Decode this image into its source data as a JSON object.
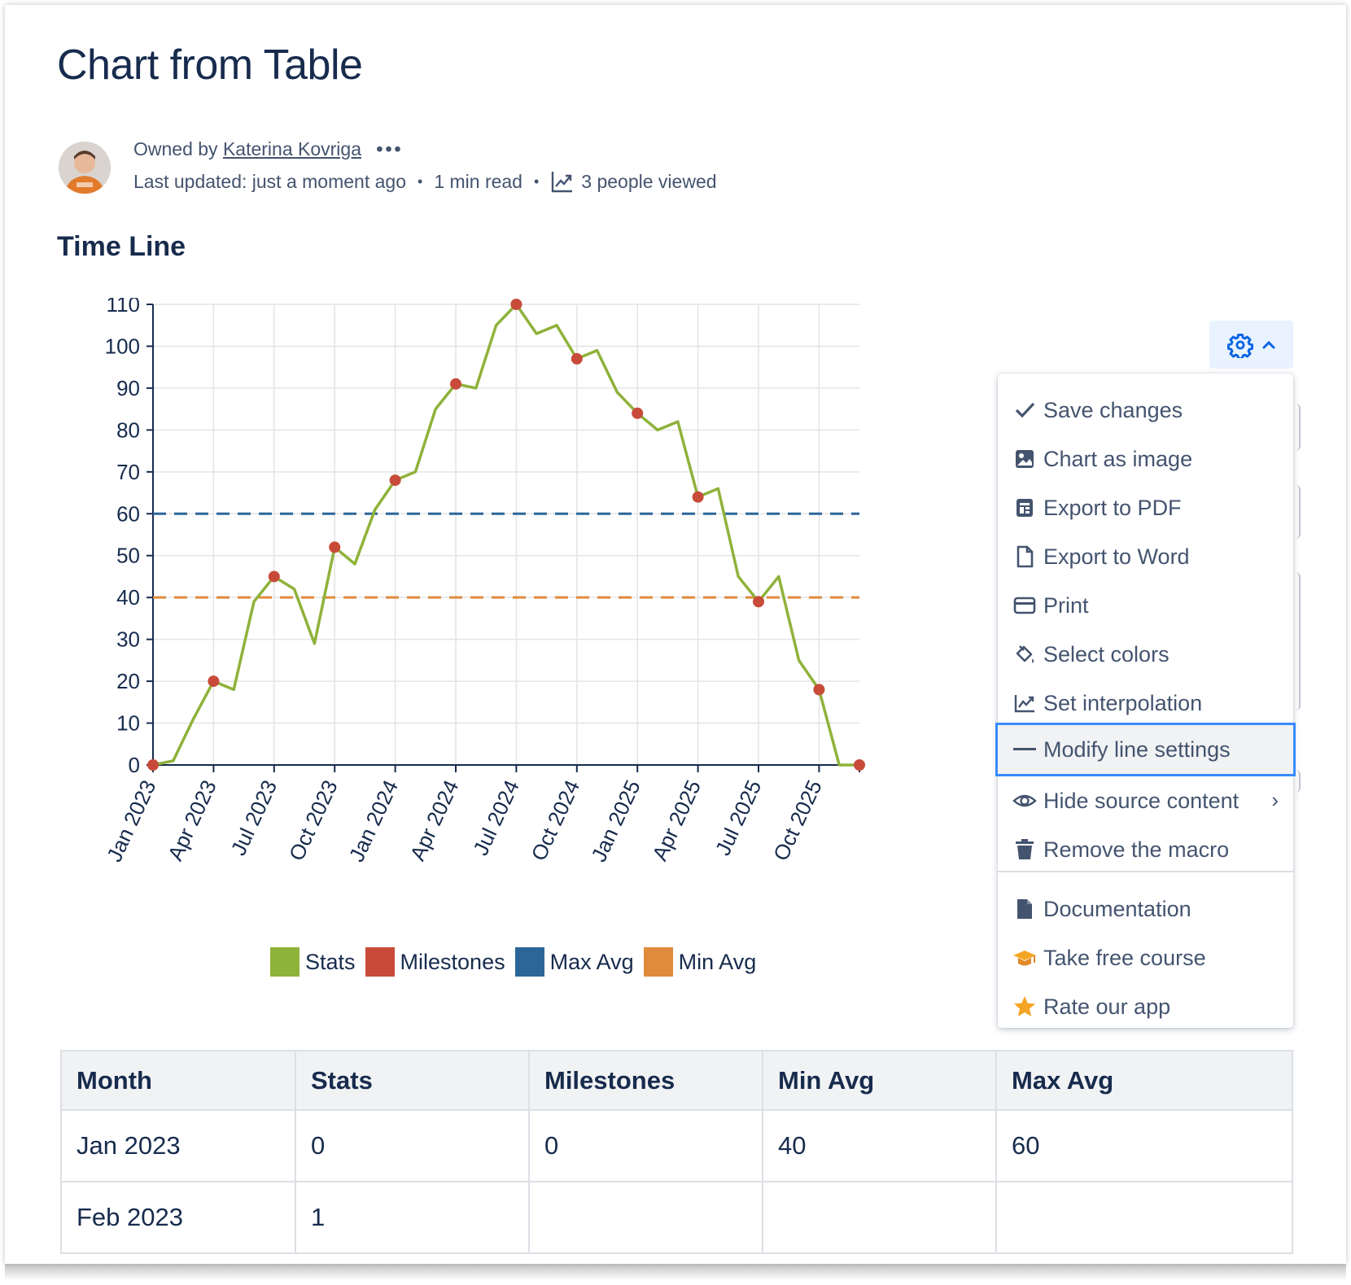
{
  "page": {
    "title": "Chart from Table",
    "byline": {
      "owned_by_prefix": "Owned by",
      "owner_name": "Katerina Kovriga",
      "more": "•••",
      "last_updated": "Last updated: just a moment ago",
      "read_time": "1 min read",
      "viewers": "3 people viewed"
    },
    "section_title": "Time Line"
  },
  "chart_data": {
    "type": "line",
    "x_ticks": [
      "Jan 2023",
      "Apr 2023",
      "Jul 2023",
      "Oct 2023",
      "Jan 2024",
      "Apr 2024",
      "Jul 2024",
      "Oct 2024",
      "Jan 2025",
      "Apr 2025",
      "Jul 2025",
      "Oct 2025"
    ],
    "y_ticks": [
      0,
      10,
      20,
      30,
      40,
      50,
      60,
      70,
      80,
      90,
      100,
      110
    ],
    "ylim": [
      0,
      110
    ],
    "xlim": [
      "Jan 2023",
      "Dec 2025"
    ],
    "grid": true,
    "series": [
      {
        "name": "Stats",
        "color": "#8fb23a",
        "x": [
          "Jan 2023",
          "Feb 2023",
          "Mar 2023",
          "Apr 2023",
          "May 2023",
          "Jun 2023",
          "Jul 2023",
          "Aug 2023",
          "Sep 2023",
          "Oct 2023",
          "Nov 2023",
          "Dec 2023",
          "Jan 2024",
          "Feb 2024",
          "Mar 2024",
          "Apr 2024",
          "May 2024",
          "Jun 2024",
          "Jul 2024",
          "Aug 2024",
          "Sep 2024",
          "Oct 2024",
          "Nov 2024",
          "Dec 2024",
          "Jan 2025",
          "Feb 2025",
          "Mar 2025",
          "Apr 2025",
          "May 2025",
          "Jun 2025",
          "Jul 2025",
          "Aug 2025",
          "Sep 2025",
          "Oct 2025",
          "Nov 2025",
          "Dec 2025"
        ],
        "values": [
          0,
          1,
          11,
          20,
          18,
          39,
          45,
          42,
          29,
          52,
          48,
          61,
          68,
          70,
          85,
          91,
          90,
          105,
          110,
          103,
          105,
          97,
          99,
          89,
          84,
          80,
          82,
          64,
          66,
          45,
          39,
          45,
          25,
          18,
          0,
          0
        ]
      },
      {
        "name": "Milestones",
        "color": "#c84b3a",
        "x": [
          "Jan 2023",
          "Apr 2023",
          "Jul 2023",
          "Oct 2023",
          "Jan 2024",
          "Apr 2024",
          "Jul 2024",
          "Oct 2024",
          "Jan 2025",
          "Apr 2025",
          "Jul 2025",
          "Oct 2025",
          "Dec 2025"
        ],
        "values": [
          0,
          20,
          45,
          52,
          68,
          91,
          110,
          97,
          84,
          64,
          39,
          18,
          0
        ]
      },
      {
        "name": "Max Avg",
        "color": "#2c6698",
        "values": [
          60
        ],
        "style": "dashed"
      },
      {
        "name": "Min Avg",
        "color": "#e08a3c",
        "values": [
          40
        ],
        "style": "dashed"
      }
    ],
    "legend": [
      "Stats",
      "Milestones",
      "Max Avg",
      "Min Avg"
    ],
    "legend_position": "bottom"
  },
  "legend": {
    "items": [
      {
        "label": "Stats",
        "color": "#8fb23a"
      },
      {
        "label": "Milestones",
        "color": "#c84b3a"
      },
      {
        "label": "Max Avg",
        "color": "#2c6698"
      },
      {
        "label": "Min Avg",
        "color": "#e08a3c"
      }
    ]
  },
  "menu": {
    "items": [
      {
        "label": "Save changes",
        "icon": "check-icon"
      },
      {
        "label": "Chart as image",
        "icon": "image-icon"
      },
      {
        "label": "Export to PDF",
        "icon": "pdf-icon"
      },
      {
        "label": "Export to Word",
        "icon": "document-icon"
      },
      {
        "label": "Print",
        "icon": "print-icon"
      },
      {
        "label": "Select colors",
        "icon": "paint-bucket-icon"
      },
      {
        "label": "Set interpolation",
        "icon": "line-chart-icon"
      },
      {
        "label": "Modify line settings",
        "icon": "line-icon",
        "active": true
      },
      {
        "label": "Hide source content",
        "icon": "eye-icon",
        "submenu": true
      },
      {
        "label": "Remove the macro",
        "icon": "trash-icon"
      },
      {
        "label": "Documentation",
        "icon": "doc-filled-icon"
      },
      {
        "label": "Take free course",
        "icon": "graduation-cap-icon"
      },
      {
        "label": "Rate our app",
        "icon": "star-icon"
      }
    ]
  },
  "table": {
    "headers": [
      "Month",
      "Stats",
      "Milestones",
      "Min Avg",
      "Max Avg"
    ],
    "rows": [
      [
        "Jan 2023",
        "0",
        "0",
        "40",
        "60"
      ],
      [
        "Feb 2023",
        "1",
        "",
        "",
        ""
      ]
    ]
  },
  "colors": {
    "accent": "#388bff",
    "text": "#172b4d",
    "muted": "#44546f",
    "gear_button_bg": "#e9f2ff"
  }
}
